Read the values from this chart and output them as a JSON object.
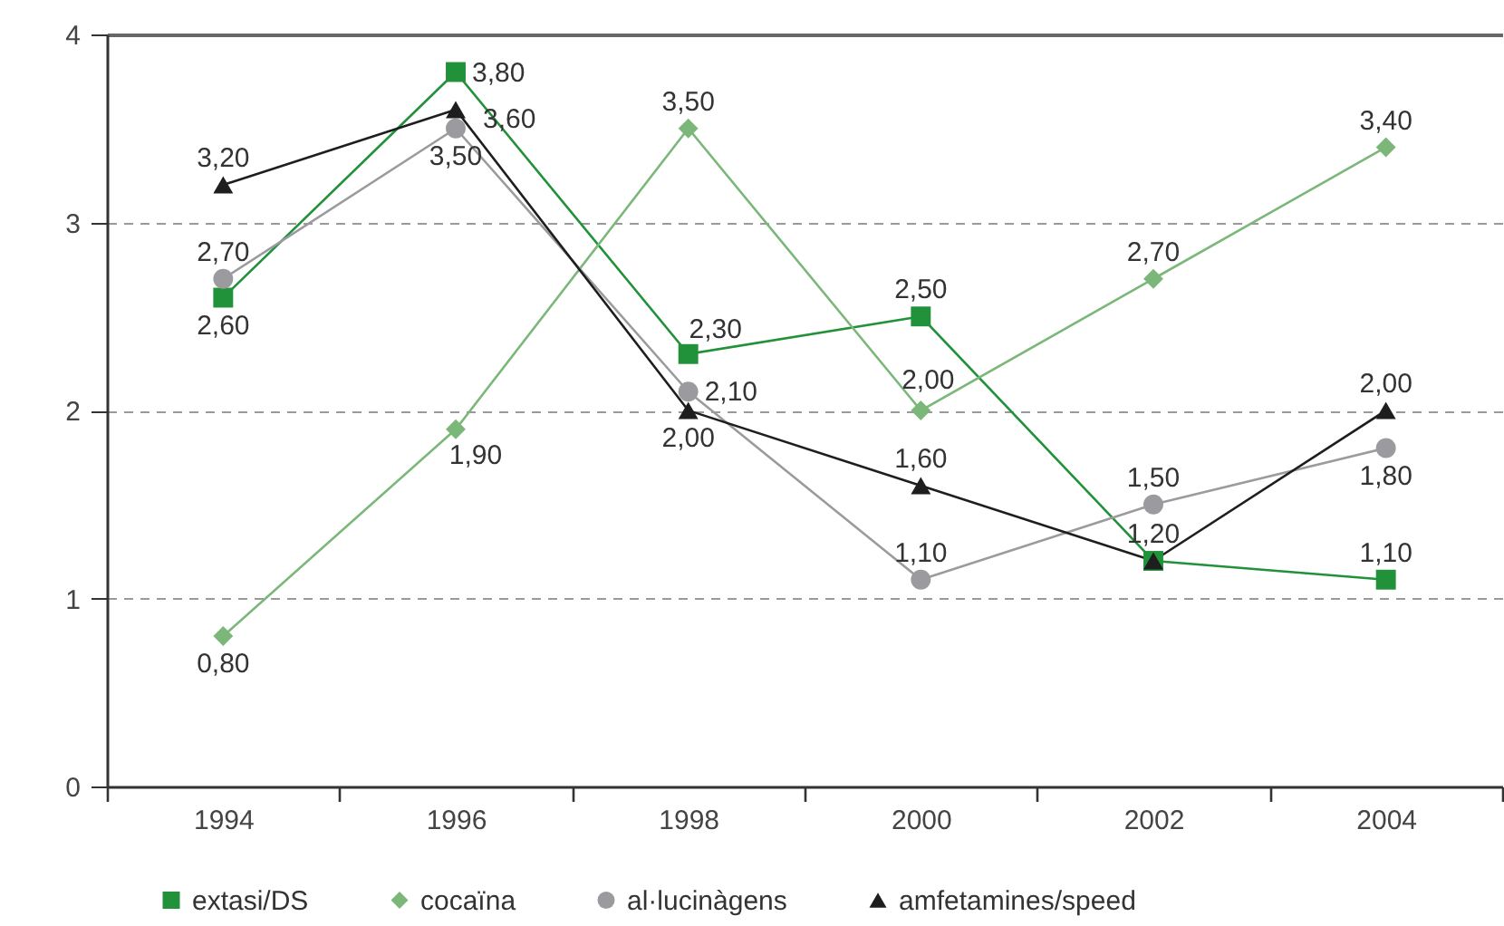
{
  "chart_data": {
    "type": "line",
    "categories": [
      "1994",
      "1996",
      "1998",
      "2000",
      "2002",
      "2004"
    ],
    "ylim": [
      0,
      4
    ],
    "yticks": [
      0,
      1,
      2,
      3,
      4
    ],
    "grid": "y",
    "legend": "bottom",
    "series": [
      {
        "name": "extasi/DS",
        "color": "#21913a",
        "marker": "square",
        "values": [
          2.6,
          3.8,
          2.3,
          2.5,
          1.2,
          1.1
        ],
        "value_labels": [
          "2,60",
          "3,80",
          "2,30",
          "2,50",
          "1,20",
          "1,10"
        ]
      },
      {
        "name": "cocaïna",
        "color": "#7cb77a",
        "marker": "diamond",
        "values": [
          0.8,
          1.9,
          3.5,
          2.0,
          2.7,
          3.4
        ],
        "value_labels": [
          "0,80",
          "1,90",
          "3,50",
          "2,00",
          "2,70",
          "3,40"
        ]
      },
      {
        "name": "al·lucinàgens",
        "color": "#9b9b9f",
        "marker": "circle",
        "values": [
          2.7,
          3.5,
          2.1,
          1.1,
          1.5,
          1.8
        ],
        "value_labels": [
          "2,70",
          "3,50",
          "2,10",
          "1,10",
          "1,50",
          "1,80"
        ]
      },
      {
        "name": "amfetamines/speed",
        "color": "#1e1e1e",
        "marker": "triangle",
        "values": [
          3.2,
          3.6,
          2.0,
          1.6,
          1.2,
          2.0
        ],
        "value_labels": [
          "3,20",
          "3,60",
          "2,00",
          "1,60",
          null,
          "2,00"
        ]
      }
    ]
  }
}
